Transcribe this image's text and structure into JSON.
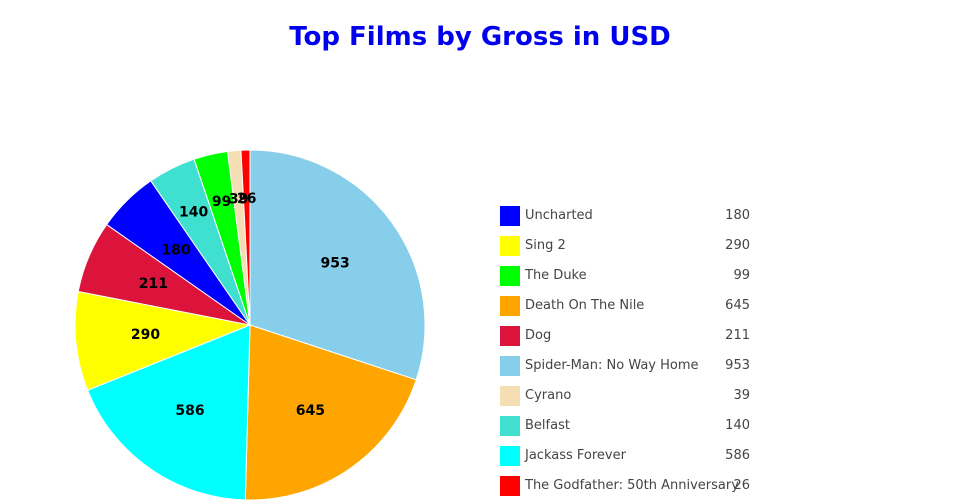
{
  "chart_data": {
    "type": "pie",
    "title": "Top Films by Gross in USD",
    "slices": [
      {
        "label": "Spider-Man: No Way Home",
        "value": 953,
        "color": "#87ceeb"
      },
      {
        "label": "Death On The Nile",
        "value": 645,
        "color": "#ffa500"
      },
      {
        "label": "Jackass Forever",
        "value": 586,
        "color": "#00ffff"
      },
      {
        "label": "Sing 2",
        "value": 290,
        "color": "#ffff00"
      },
      {
        "label": "Dog",
        "value": 211,
        "color": "#dc143c"
      },
      {
        "label": "Uncharted",
        "value": 180,
        "color": "#0000ff"
      },
      {
        "label": "Belfast",
        "value": 140,
        "color": "#40e0d0"
      },
      {
        "label": "The Duke",
        "value": 99,
        "color": "#00ff00"
      },
      {
        "label": "Cyrano",
        "value": 39,
        "color": "#f5deb3"
      },
      {
        "label": "The Godfather: 50th Anniversary",
        "value": 26,
        "color": "#ff0000"
      }
    ],
    "legend": {
      "placement": "right",
      "entries": [
        {
          "label": "Uncharted",
          "value": "180",
          "color": "#0000ff"
        },
        {
          "label": "Sing 2",
          "value": "290",
          "color": "#ffff00"
        },
        {
          "label": "The Duke",
          "value": "99",
          "color": "#00ff00"
        },
        {
          "label": "Death On The Nile",
          "value": "645",
          "color": "#ffa500"
        },
        {
          "label": "Dog",
          "value": "211",
          "color": "#dc143c"
        },
        {
          "label": "Spider-Man: No Way Home",
          "value": "953",
          "color": "#87ceeb"
        },
        {
          "label": "Cyrano",
          "value": "39",
          "color": "#f5deb3"
        },
        {
          "label": "Belfast",
          "value": "140",
          "color": "#40e0d0"
        },
        {
          "label": "Jackass Forever",
          "value": "586",
          "color": "#00ffff"
        },
        {
          "label": "The Godfather: 50th Anniversary",
          "value": "26",
          "color": "#ff0000"
        }
      ]
    }
  }
}
